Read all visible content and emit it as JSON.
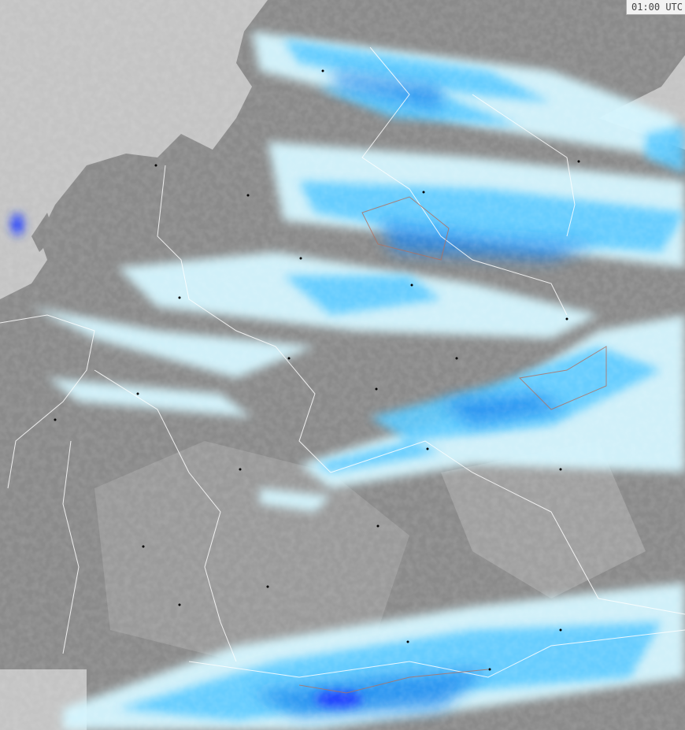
{
  "timestamp": "01:00 UTC",
  "colors": {
    "sea": "#c4c4c4",
    "land": "#8a8a8a",
    "land_light": "#a8a8a8",
    "borders": "#ffffff",
    "precip_light": "#d4f6ff",
    "precip_medium": "#5ccaff",
    "precip_heavy": "#1e88ee",
    "precip_intense": "#2040ff"
  }
}
